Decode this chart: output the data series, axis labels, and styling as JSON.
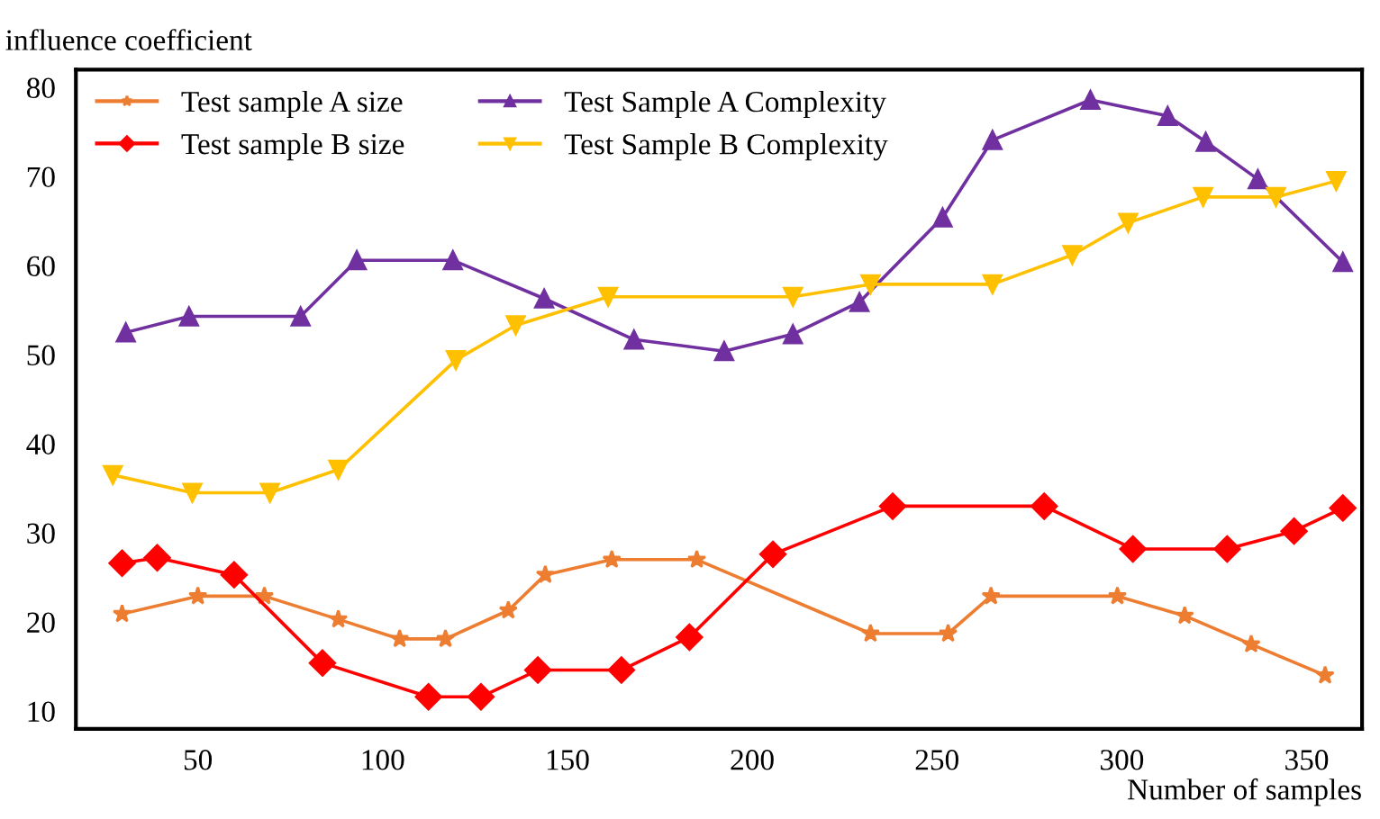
{
  "chart_data": {
    "type": "line",
    "xlabel": "Number of samples",
    "ylabel": "influence coefficient",
    "xlim": [
      17,
      365
    ],
    "ylim": [
      8,
      82
    ],
    "xticks": [
      50,
      100,
      150,
      200,
      250,
      300,
      350
    ],
    "yticks": [
      10,
      20,
      30,
      40,
      50,
      60,
      70,
      80
    ],
    "grid": false,
    "legend": "top left",
    "series": [
      {
        "name": "Test sample A size",
        "color": "#ed7d31",
        "marker": "star",
        "x": [
          29.5,
          50,
          68,
          88,
          104.6,
          117,
          134,
          144,
          162,
          185,
          232,
          253,
          264.6,
          298.8,
          317,
          335,
          355
        ],
        "values": [
          20.9,
          22.9,
          22.9,
          20.3,
          18.1,
          18.1,
          21.3,
          25.3,
          27,
          27,
          18.7,
          18.7,
          22.9,
          22.9,
          20.7,
          17.5,
          14
        ]
      },
      {
        "name": "Test sample B size",
        "color": "#ff0000",
        "marker": "diamond",
        "x": [
          29.5,
          39,
          59.8,
          83.7,
          112.4,
          126.6,
          142,
          164.6,
          183,
          205.6,
          238,
          279,
          303,
          328.5,
          346.6,
          359.8
        ],
        "values": [
          26.6,
          27.2,
          25.3,
          15.4,
          11.6,
          11.6,
          14.6,
          14.6,
          18.3,
          27.6,
          33,
          33,
          28.2,
          28.2,
          30.2,
          32.8
        ]
      },
      {
        "name": "Test Sample A Complexity",
        "color": "#7030a0",
        "marker": "triangle",
        "x": [
          30.5,
          47.6,
          77.8,
          93,
          119,
          143.7,
          168,
          192.4,
          211,
          229,
          251.5,
          265,
          291.5,
          312.4,
          322.7,
          336.8,
          359.8
        ],
        "values": [
          52.5,
          54.3,
          54.3,
          60.6,
          60.6,
          56.3,
          51.7,
          50.4,
          52.3,
          55.9,
          65.4,
          74.1,
          78.6,
          76.8,
          73.9,
          69.7,
          60.4
        ]
      },
      {
        "name": "Test Sample B Complexity",
        "color": "#ffc000",
        "marker": "triangle_down",
        "x": [
          27,
          48.5,
          69.5,
          88,
          119.8,
          136,
          161,
          211,
          232,
          265,
          286.6,
          301.7,
          322,
          341.7,
          358
        ],
        "values": [
          36.5,
          34.5,
          34.5,
          37.1,
          49.4,
          53.3,
          56.5,
          56.5,
          57.9,
          57.9,
          61.2,
          64.8,
          67.7,
          67.7,
          69.5
        ]
      }
    ]
  }
}
